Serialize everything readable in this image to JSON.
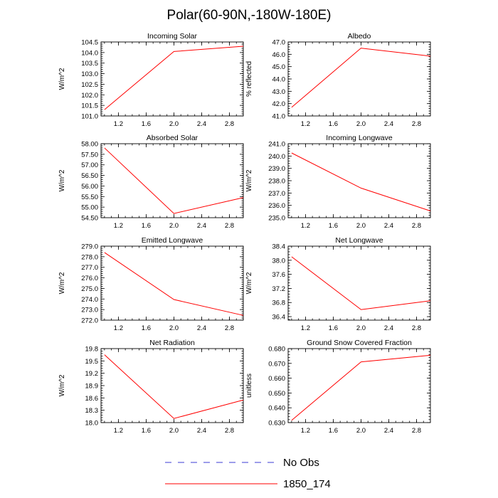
{
  "figure": {
    "title": "Polar(60-90N,-180W-180E)"
  },
  "legend": {
    "items": [
      {
        "label": "No Obs",
        "color": "#3b3bd6",
        "dashed": true
      },
      {
        "label": "1850_174",
        "color": "#ff0000",
        "dashed": false
      }
    ]
  },
  "chart_data": [
    {
      "type": "line",
      "title": "Incoming Solar",
      "xlabel": "",
      "ylabel": "W/m^2",
      "xlim": [
        0.95,
        3.0
      ],
      "ylim": [
        101.0,
        104.5
      ],
      "xticks": [
        "1.2",
        "1.6",
        "2.0",
        "2.4",
        "2.8"
      ],
      "yticks": [
        "101.0",
        "101.5",
        "102.0",
        "102.5",
        "103.0",
        "103.5",
        "104.0",
        "104.5"
      ],
      "series": [
        {
          "name": "1850_174",
          "x": [
            1,
            2,
            3
          ],
          "values": [
            101.3,
            104.05,
            104.3
          ]
        }
      ]
    },
    {
      "type": "line",
      "title": "Albedo",
      "xlabel": "",
      "ylabel": "% reflected",
      "xlim": [
        0.95,
        3.0
      ],
      "ylim": [
        41.0,
        47.0
      ],
      "xticks": [
        "1.2",
        "1.6",
        "2.0",
        "2.4",
        "2.8"
      ],
      "yticks": [
        "41.0",
        "42.0",
        "43.0",
        "44.0",
        "45.0",
        "46.0",
        "47.0"
      ],
      "series": [
        {
          "name": "1850_174",
          "x": [
            1,
            2,
            3
          ],
          "values": [
            41.7,
            46.5,
            45.85
          ]
        }
      ]
    },
    {
      "type": "line",
      "title": "Absorbed Solar",
      "xlabel": "",
      "ylabel": "W/m^2",
      "xlim": [
        0.95,
        3.0
      ],
      "ylim": [
        54.5,
        58.0
      ],
      "xticks": [
        "1.2",
        "1.6",
        "2.0",
        "2.4",
        "2.8"
      ],
      "yticks": [
        "54.50",
        "55.00",
        "55.50",
        "56.00",
        "56.50",
        "57.00",
        "57.50",
        "58.00"
      ],
      "series": [
        {
          "name": "1850_174",
          "x": [
            1,
            2,
            3
          ],
          "values": [
            57.8,
            54.7,
            55.45
          ]
        }
      ]
    },
    {
      "type": "line",
      "title": "Incoming Longwave",
      "xlabel": "",
      "ylabel": "W/m^2",
      "xlim": [
        0.95,
        3.0
      ],
      "ylim": [
        235.0,
        241.0
      ],
      "xticks": [
        "1.2",
        "1.6",
        "2.0",
        "2.4",
        "2.8"
      ],
      "yticks": [
        "235.0",
        "236.0",
        "237.0",
        "238.0",
        "239.0",
        "240.0",
        "241.0"
      ],
      "series": [
        {
          "name": "1850_174",
          "x": [
            1,
            2,
            3
          ],
          "values": [
            240.25,
            237.4,
            235.55
          ]
        }
      ]
    },
    {
      "type": "line",
      "title": "Emitted Longwave",
      "xlabel": "",
      "ylabel": "W/m^2",
      "xlim": [
        0.95,
        3.0
      ],
      "ylim": [
        272.0,
        279.0
      ],
      "xticks": [
        "1.2",
        "1.6",
        "2.0",
        "2.4",
        "2.8"
      ],
      "yticks": [
        "272.0",
        "273.0",
        "274.0",
        "275.0",
        "276.0",
        "277.0",
        "278.0",
        "279.0"
      ],
      "series": [
        {
          "name": "1850_174",
          "x": [
            1,
            2,
            3
          ],
          "values": [
            278.4,
            273.95,
            272.45
          ]
        }
      ]
    },
    {
      "type": "line",
      "title": "Net Longwave",
      "xlabel": "",
      "ylabel": "W/m^2",
      "xlim": [
        0.95,
        3.0
      ],
      "ylim": [
        36.3,
        38.4
      ],
      "xticks": [
        "1.2",
        "1.6",
        "2.0",
        "2.4",
        "2.8"
      ],
      "yticks": [
        "36.4",
        "36.8",
        "37.2",
        "37.6",
        "38.0",
        "38.4"
      ],
      "series": [
        {
          "name": "1850_174",
          "x": [
            1,
            2,
            3
          ],
          "values": [
            38.1,
            36.6,
            36.85
          ]
        }
      ]
    },
    {
      "type": "line",
      "title": "Net Radiation",
      "xlabel": "",
      "ylabel": "W/m^2",
      "xlim": [
        0.95,
        3.0
      ],
      "ylim": [
        18.0,
        19.8
      ],
      "xticks": [
        "1.2",
        "1.6",
        "2.0",
        "2.4",
        "2.8"
      ],
      "yticks": [
        "18.0",
        "18.3",
        "18.6",
        "18.9",
        "19.2",
        "19.5",
        "19.8"
      ],
      "series": [
        {
          "name": "1850_174",
          "x": [
            1,
            2,
            3
          ],
          "values": [
            19.65,
            18.1,
            18.55
          ]
        }
      ]
    },
    {
      "type": "line",
      "title": "Ground Snow Covered Fraction",
      "xlabel": "",
      "ylabel": "unitless",
      "xlim": [
        0.95,
        3.0
      ],
      "ylim": [
        0.63,
        0.68
      ],
      "xticks": [
        "1.2",
        "1.6",
        "2.0",
        "2.4",
        "2.8"
      ],
      "yticks": [
        "0.630",
        "0.640",
        "0.650",
        "0.660",
        "0.670",
        "0.680"
      ],
      "series": [
        {
          "name": "1850_174",
          "x": [
            1,
            2,
            3
          ],
          "values": [
            0.6315,
            0.671,
            0.6755
          ]
        }
      ]
    }
  ]
}
